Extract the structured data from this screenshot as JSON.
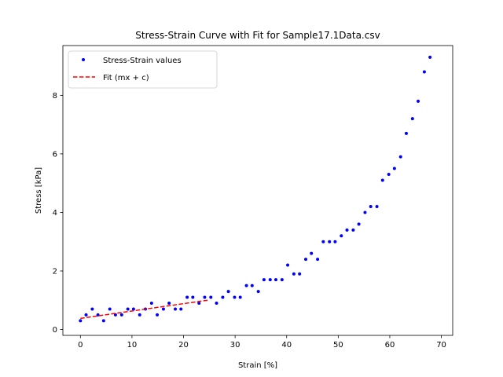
{
  "chart_data": {
    "type": "scatter",
    "title": "Stress-Strain Curve with Fit for Sample17.1Data.csv",
    "xlabel": "Strain [%]",
    "ylabel": "Stress [kPa]",
    "xlim": [
      -3.4,
      72.2
    ],
    "ylim": [
      -0.2,
      9.7
    ],
    "xticks": [
      0,
      10,
      20,
      30,
      40,
      50,
      60,
      70
    ],
    "yticks": [
      0,
      2,
      4,
      6,
      8
    ],
    "grid": false,
    "legend_position": "upper left",
    "series": [
      {
        "name": "Stress-Strain values",
        "kind": "scatter",
        "color": "#0000ff",
        "marker": "dot",
        "points": [
          [
            0,
            0.3
          ],
          [
            1.1,
            0.5
          ],
          [
            2.3,
            0.7
          ],
          [
            3.4,
            0.5
          ],
          [
            4.5,
            0.3
          ],
          [
            5.7,
            0.7
          ],
          [
            6.8,
            0.5
          ],
          [
            8.0,
            0.5
          ],
          [
            9.2,
            0.7
          ],
          [
            10.3,
            0.7
          ],
          [
            11.5,
            0.5
          ],
          [
            12.6,
            0.7
          ],
          [
            13.8,
            0.9
          ],
          [
            14.9,
            0.5
          ],
          [
            16.1,
            0.7
          ],
          [
            17.2,
            0.9
          ],
          [
            18.4,
            0.7
          ],
          [
            19.5,
            0.7
          ],
          [
            20.7,
            1.1
          ],
          [
            21.8,
            1.1
          ],
          [
            23.0,
            0.9
          ],
          [
            24.1,
            1.1
          ],
          [
            25.3,
            1.1
          ],
          [
            26.4,
            0.9
          ],
          [
            27.6,
            1.1
          ],
          [
            28.7,
            1.3
          ],
          [
            29.9,
            1.1
          ],
          [
            31.0,
            1.1
          ],
          [
            32.2,
            1.5
          ],
          [
            33.3,
            1.5
          ],
          [
            34.5,
            1.3
          ],
          [
            35.6,
            1.7
          ],
          [
            36.8,
            1.7
          ],
          [
            37.9,
            1.7
          ],
          [
            39.1,
            1.7
          ],
          [
            40.2,
            2.2
          ],
          [
            41.4,
            1.9
          ],
          [
            42.5,
            1.9
          ],
          [
            43.7,
            2.4
          ],
          [
            44.8,
            2.6
          ],
          [
            46.0,
            2.4
          ],
          [
            47.1,
            3.0
          ],
          [
            48.3,
            3.0
          ],
          [
            49.4,
            3.0
          ],
          [
            50.6,
            3.2
          ],
          [
            51.7,
            3.4
          ],
          [
            52.9,
            3.4
          ],
          [
            54.0,
            3.6
          ],
          [
            55.2,
            4.0
          ],
          [
            56.3,
            4.2
          ],
          [
            57.5,
            4.2
          ],
          [
            58.6,
            5.1
          ],
          [
            59.8,
            5.3
          ],
          [
            60.9,
            5.5
          ],
          [
            62.1,
            5.9
          ],
          [
            63.2,
            6.7
          ],
          [
            64.4,
            7.2
          ],
          [
            65.5,
            7.8
          ],
          [
            66.7,
            8.8
          ],
          [
            67.8,
            9.3
          ]
        ]
      },
      {
        "name": "Fit (mx + c)",
        "kind": "line",
        "color": "#ff0000",
        "linestyle": "dashed",
        "points": [
          [
            0,
            0.38
          ],
          [
            25,
            1.01
          ]
        ]
      }
    ]
  }
}
